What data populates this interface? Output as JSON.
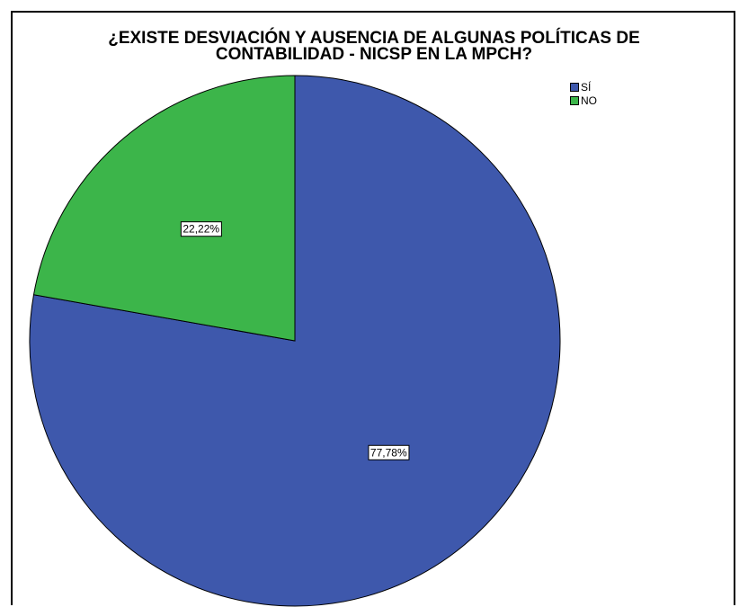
{
  "chart_data": {
    "type": "pie",
    "title": "¿EXISTE DESVIACIÓN Y AUSENCIA DE ALGUNAS POLÍTICAS DE CONTABILIDAD - NICSP EN LA MPCH?",
    "title_lines": [
      "¿EXISTE DESVIACIÓN Y AUSENCIA DE ALGUNAS POLÍTICAS DE",
      "CONTABILIDAD - NICSP EN LA MPCH?"
    ],
    "legend_position": "top-right",
    "slices": [
      {
        "label": "SÍ",
        "value": 77.78,
        "value_label": "77,78%",
        "color": "#3e58ac"
      },
      {
        "label": "NO",
        "value": 22.22,
        "value_label": "22,22%",
        "color": "#3cb54a"
      }
    ]
  }
}
